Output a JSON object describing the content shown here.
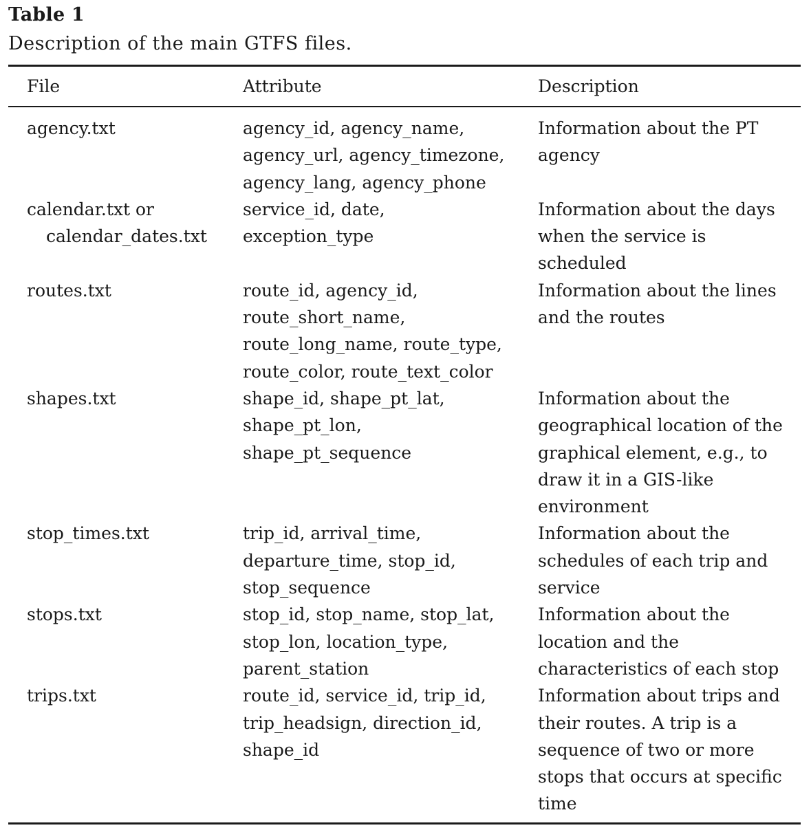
{
  "caption": {
    "label": "Table 1",
    "title": "Description of the main GTFS files."
  },
  "table": {
    "headers": [
      "File",
      "Attribute",
      "Description"
    ],
    "rows": [
      {
        "file": [
          "agency.txt"
        ],
        "attribute": [
          "agency_id, agency_name,",
          "agency_url, agency_timezone,",
          "agency_lang, agency_phone"
        ],
        "description": [
          "Information about the PT",
          "agency"
        ],
        "lines": 3
      },
      {
        "file": [
          "calendar.txt or",
          "calendar_dates.txt"
        ],
        "attribute": [
          "service_id, date,",
          "exception_type"
        ],
        "description": [
          "Information about the days",
          "when the service is",
          "scheduled"
        ],
        "lines": 3
      },
      {
        "file": [
          "routes.txt"
        ],
        "attribute": [
          "route_id, agency_id,",
          "route_short_name,",
          "route_long_name, route_type,",
          "route_color, route_text_color"
        ],
        "description": [
          "Information about the lines",
          "and the routes"
        ],
        "lines": 4
      },
      {
        "file": [
          "shapes.txt"
        ],
        "attribute": [
          "shape_id, shape_pt_lat,",
          "shape_pt_lon,",
          "shape_pt_sequence"
        ],
        "description": [
          "Information about the",
          "geographical location of the",
          "graphical element, e.g., to",
          "draw it in a GIS-like",
          "environment"
        ],
        "lines": 5
      },
      {
        "file": [
          "stop_times.txt"
        ],
        "attribute": [
          "trip_id, arrival_time,",
          "departure_time, stop_id,",
          "stop_sequence"
        ],
        "description": [
          "Information about the",
          "schedules of each trip and",
          "service"
        ],
        "lines": 3
      },
      {
        "file": [
          "stops.txt"
        ],
        "attribute": [
          "stop_id, stop_name, stop_lat,",
          "stop_lon, location_type,",
          "parent_station"
        ],
        "description": [
          "Information about the",
          "location and the",
          "characteristics of each stop"
        ],
        "lines": 3
      },
      {
        "file": [
          "trips.txt"
        ],
        "attribute": [
          "route_id, service_id, trip_id,",
          "trip_headsign, direction_id,",
          "shape_id"
        ],
        "description": [
          "Information about trips and",
          "their routes. A trip is a",
          "sequence of two or more",
          "stops that occurs at specific",
          "time"
        ],
        "lines": 5
      }
    ]
  }
}
